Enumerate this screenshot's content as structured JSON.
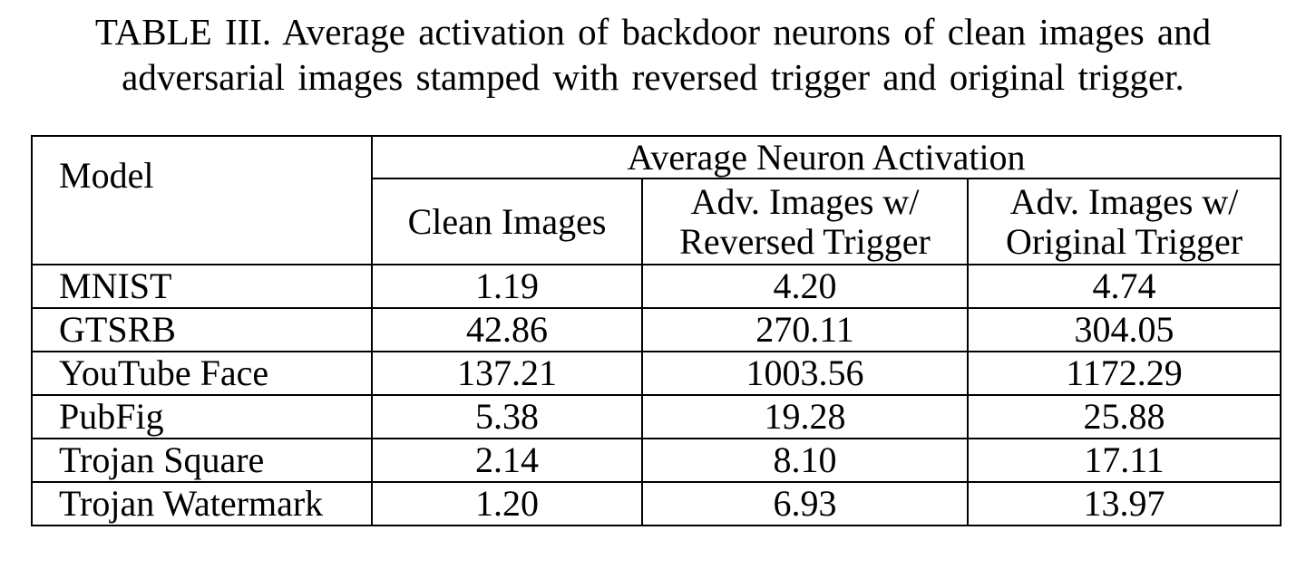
{
  "caption": {
    "line1": "TABLE III.  Average activation of backdoor neurons of clean images and",
    "line2": "adversarial images stamped with reversed trigger and original trigger."
  },
  "table": {
    "model_header": "Model",
    "group_header": "Average Neuron Activation",
    "sub_headers": [
      {
        "line1": "Clean Images",
        "line2": ""
      },
      {
        "line1": "Adv. Images w/",
        "line2": "Reversed Trigger"
      },
      {
        "line1": "Adv. Images w/",
        "line2": "Original Trigger"
      }
    ],
    "rows": [
      {
        "model": "MNIST",
        "clean": "1.19",
        "reversed": "4.20",
        "original": "4.74"
      },
      {
        "model": "GTSRB",
        "clean": "42.86",
        "reversed": "270.11",
        "original": "304.05"
      },
      {
        "model": "YouTube Face",
        "clean": "137.21",
        "reversed": "1003.56",
        "original": "1172.29"
      },
      {
        "model": "PubFig",
        "clean": "5.38",
        "reversed": "19.28",
        "original": "25.88"
      },
      {
        "model": "Trojan Square",
        "clean": "2.14",
        "reversed": "8.10",
        "original": "17.11"
      },
      {
        "model": "Trojan Watermark",
        "clean": "1.20",
        "reversed": "6.93",
        "original": "13.97"
      }
    ]
  }
}
